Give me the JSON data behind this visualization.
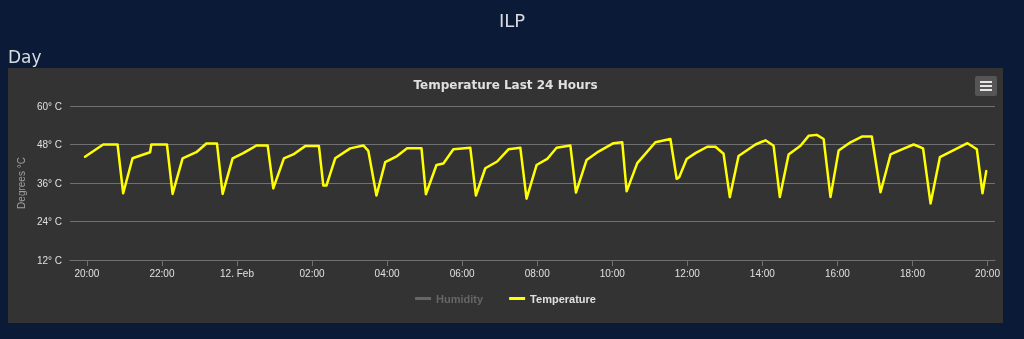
{
  "chart_data": {
    "type": "line",
    "title": "Temperature Last 24 Hours",
    "annotations": [
      "ILP",
      "Day"
    ],
    "ylabel": "Degrees °C",
    "xlim": [
      "--02-11T19:33",
      "--02-12T20:12"
    ],
    "xticks": [
      {
        "value": "--02-11T20:00",
        "label": "20:00"
      },
      {
        "value": "--02-11T22:00",
        "label": "22:00"
      },
      {
        "value": "--02-12T00:00",
        "label": "12. Feb"
      },
      {
        "value": "--02-12T02:00",
        "label": "02:00"
      },
      {
        "value": "--02-12T04:00",
        "label": "04:00"
      },
      {
        "value": "--02-12T06:00",
        "label": "06:00"
      },
      {
        "value": "--02-12T08:00",
        "label": "08:00"
      },
      {
        "value": "--02-12T10:00",
        "label": "10:00"
      },
      {
        "value": "--02-12T12:00",
        "label": "12:00"
      },
      {
        "value": "--02-12T14:00",
        "label": "14:00"
      },
      {
        "value": "--02-12T16:00",
        "label": "16:00"
      },
      {
        "value": "--02-12T18:00",
        "label": "18:00"
      },
      {
        "value": "--02-12T20:00",
        "label": "20:00"
      }
    ],
    "ylim": [
      12,
      60
    ],
    "yticks": [
      {
        "value": 12,
        "label": "12° C"
      },
      {
        "value": 24,
        "label": "24° C"
      },
      {
        "value": 36,
        "label": "36° C"
      },
      {
        "value": 48,
        "label": "48° C"
      },
      {
        "value": 60,
        "label": "60° C"
      }
    ],
    "grid": "y",
    "legend": "bottom",
    "marker": "none",
    "line_style": "solid",
    "series": [
      {
        "name": "Humidity",
        "color": "#666666"
      },
      {
        "name": "Temperature",
        "color": "#ffff00",
        "x": [
          "--02-11T19:57",
          "--02-11T20:26",
          "--02-11T20:49",
          "--02-11T20:58",
          "--02-11T21:13",
          "--02-11T21:41",
          "--02-11T21:43",
          "--02-11T22:08",
          "--02-11T22:17",
          "--02-11T22:33",
          "--02-11T22:55",
          "--02-11T23:11",
          "--02-11T23:28",
          "--02-11T23:37",
          "--02-11T23:53",
          "--02-12T00:10",
          "--02-12T00:31",
          "--02-12T00:49",
          "--02-12T00:58",
          "--02-12T01:15",
          "--02-12T01:30",
          "--02-12T01:49",
          "--02-12T02:11",
          "--02-12T02:18",
          "--02-12T02:23",
          "--02-12T02:37",
          "--02-12T03:01",
          "--02-12T03:22",
          "--02-12T03:30",
          "--02-12T03:43",
          "--02-12T03:57",
          "--02-12T04:16",
          "--02-12T04:32",
          "--02-12T04:55",
          "--02-12T05:02",
          "--02-12T05:19",
          "--02-12T05:30",
          "--02-12T05:46",
          "--02-12T06:13",
          "--02-12T06:22",
          "--02-12T06:37",
          "--02-12T06:56",
          "--02-12T07:14",
          "--02-12T07:33",
          "--02-12T07:43",
          "--02-12T07:59",
          "--02-12T08:16",
          "--02-12T08:31",
          "--02-12T08:53",
          "--02-12T09:02",
          "--02-12T09:19",
          "--02-12T09:38",
          "--02-12T10:02",
          "--02-12T10:16",
          "--02-12T10:23",
          "--02-12T10:40",
          "--02-12T11:09",
          "--02-12T11:33",
          "--02-12T11:43",
          "--02-12T11:47",
          "--02-12T11:59",
          "--02-12T12:13",
          "--02-12T12:32",
          "--02-12T12:45",
          "--02-12T12:58",
          "--02-12T13:08",
          "--02-12T13:22",
          "--02-12T13:49",
          "--02-12T14:05",
          "--02-12T14:18",
          "--02-12T14:28",
          "--02-12T14:42",
          "--02-12T15:01",
          "--02-12T15:14",
          "--02-12T15:27",
          "--02-12T15:38",
          "--02-12T15:49",
          "--02-12T16:02",
          "--02-12T16:21",
          "--02-12T16:40",
          "--02-12T16:55",
          "--02-12T17:09",
          "--02-12T17:25",
          "--02-12T17:46",
          "--02-12T18:02",
          "--02-12T18:17",
          "--02-12T18:29",
          "--02-12T18:44",
          "--02-12T19:28",
          "--02-12T19:43",
          "--02-12T19:52",
          "--02-12T19:58"
        ],
        "values": [
          44.2,
          48,
          48,
          32.8,
          43.7,
          45.6,
          48,
          48,
          32.6,
          43.7,
          45.6,
          48.3,
          48.3,
          32.6,
          43.7,
          45.3,
          47.7,
          47.7,
          34.3,
          43.7,
          44.9,
          47.5,
          47.5,
          35.2,
          35.2,
          43.7,
          46.8,
          47.7,
          46,
          32.1,
          42.5,
          44.4,
          46.8,
          46.8,
          32.5,
          41.6,
          42.1,
          46.5,
          47,
          32.1,
          40.6,
          42.7,
          46.5,
          47,
          31.1,
          41.6,
          43.5,
          47,
          47.7,
          33,
          43.2,
          45.8,
          48.4,
          48.7,
          33.4,
          42.2,
          48.7,
          49.7,
          37.3,
          37.8,
          43.5,
          45.3,
          47.3,
          47.3,
          45.1,
          31.6,
          44.4,
          48,
          49.3,
          47.6,
          31.6,
          44.9,
          47.6,
          50.7,
          51,
          49.7,
          31.6,
          46.1,
          48.7,
          50.5,
          50.5,
          33.1,
          44.9,
          46.7,
          48,
          46.8,
          29.6,
          44.1,
          48.4,
          46.5,
          32.8,
          39.7
        ]
      }
    ]
  }
}
